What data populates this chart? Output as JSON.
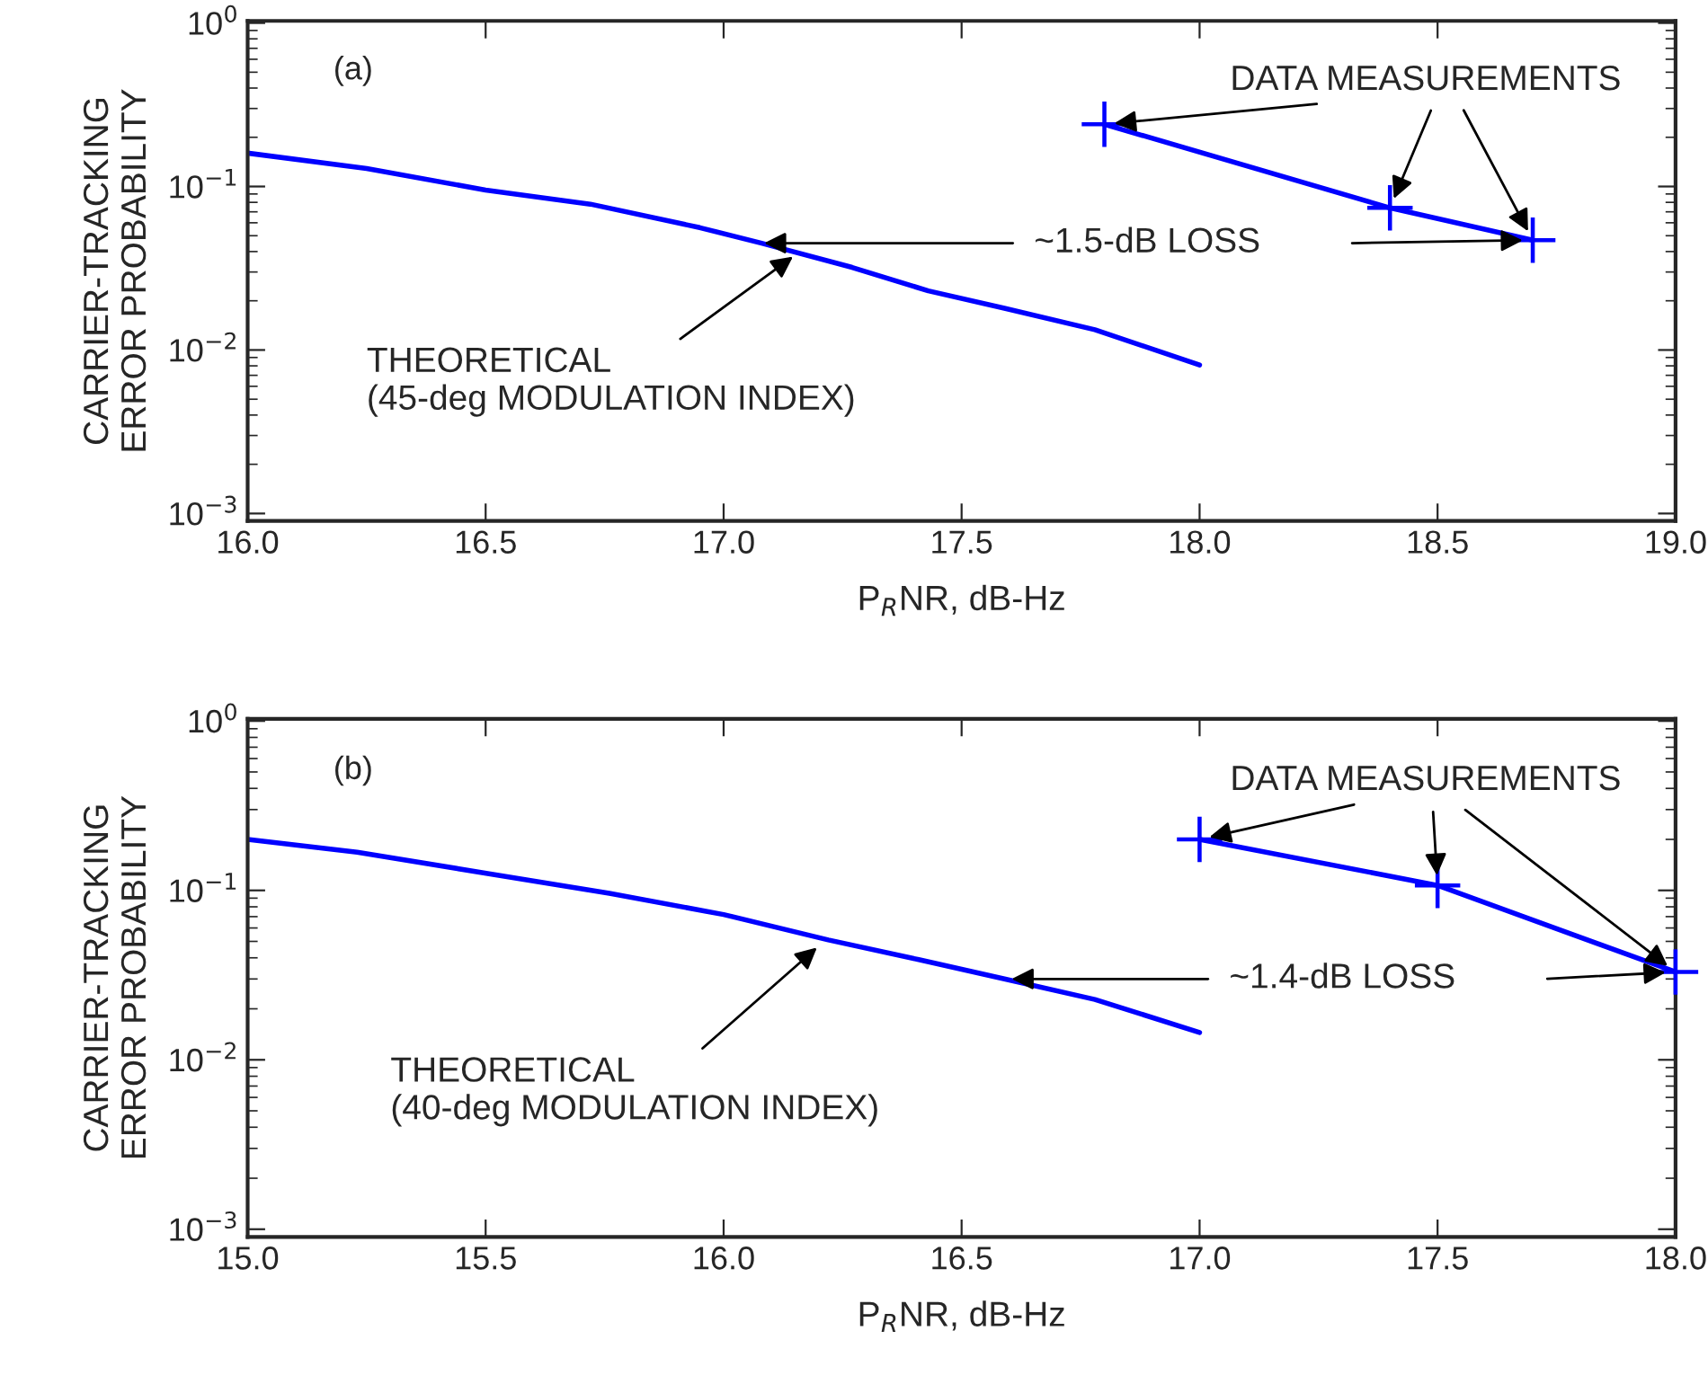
{
  "chart_data": [
    {
      "type": "line",
      "xlabel": "P$_{R}$NR, dB-Hz",
      "ylabel": "CARRIER-TRACKING\nERROR PROBABILITY",
      "log": "y",
      "grid": false,
      "legend": false,
      "xlim": [
        16,
        19
      ],
      "xticks": [
        {
          "value": 16,
          "label": "16.0"
        },
        {
          "value": 16.5,
          "label": "16.5"
        },
        {
          "value": 17,
          "label": "17.0"
        },
        {
          "value": 17.5,
          "label": "17.5"
        },
        {
          "value": 18,
          "label": "18.0"
        },
        {
          "value": 18.5,
          "label": "18.5"
        },
        {
          "value": 19,
          "label": "19.0"
        }
      ],
      "ylim": [
        0.0009,
        1.03
      ],
      "yticks": [
        {
          "value": 0.001,
          "label": "10$^{−3}$"
        },
        {
          "value": 0.01,
          "label": "10$^{−2}$"
        },
        {
          "value": 0.1,
          "label": "10$^{−1}$"
        },
        {
          "value": 1,
          "label": "10$^{0}$"
        }
      ],
      "series": [
        {
          "color": "#0000ff",
          "marker": "none",
          "x": [
            16.0,
            16.25,
            16.5,
            16.72,
            16.95,
            17.08,
            17.27,
            17.43,
            17.59,
            17.78,
            18.0
          ],
          "values": [
            0.16,
            0.129,
            0.095,
            0.078,
            0.056,
            0.045,
            0.032,
            0.023,
            0.018,
            0.0133,
            0.0081
          ]
        },
        {
          "color": "#0000ff",
          "marker": "cross",
          "x": [
            17.8,
            18.4,
            18.7
          ],
          "values": [
            0.24,
            0.074,
            0.047
          ]
        }
      ],
      "annotations": [
        "(a)",
        {
          "text": "DATA MEASUREMENTS",
          "x": 17.8,
          "y": 0.24
        },
        {
          "text": "~1.5-dB LOSS",
          "x": 17.08,
          "y": 0.045
        },
        {
          "text": "THEORETICAL\n(45-deg MODULATION INDEX)",
          "x": 17.15,
          "y": 0.038
        }
      ]
    },
    {
      "type": "line",
      "xlabel": "P$_{R}$NR, dB-Hz",
      "ylabel": "CARRIER-TRACKING\nERROR PROBABILITY",
      "log": "y",
      "grid": false,
      "legend": false,
      "xlim": [
        15,
        18
      ],
      "xticks": [
        {
          "value": 15,
          "label": "15.0"
        },
        {
          "value": 15.5,
          "label": "15.5"
        },
        {
          "value": 16,
          "label": "16.0"
        },
        {
          "value": 16.5,
          "label": "16.5"
        },
        {
          "value": 17,
          "label": "17.0"
        },
        {
          "value": 17.5,
          "label": "17.5"
        },
        {
          "value": 18,
          "label": "18.0"
        }
      ],
      "ylim": [
        0.0009,
        1.03
      ],
      "yticks": [
        {
          "value": 0.001,
          "label": "10$^{−3}$"
        },
        {
          "value": 0.01,
          "label": "10$^{−2}$"
        },
        {
          "value": 0.1,
          "label": "10$^{−1}$"
        },
        {
          "value": 1,
          "label": "10$^{0}$"
        }
      ],
      "series": [
        {
          "color": "#0000ff",
          "marker": "none",
          "x": [
            15.0,
            15.23,
            15.51,
            15.76,
            16.0,
            16.22,
            16.41,
            16.59,
            16.78,
            17.0
          ],
          "values": [
            0.2,
            0.168,
            0.125,
            0.096,
            0.072,
            0.051,
            0.039,
            0.03,
            0.0227,
            0.0145
          ]
        },
        {
          "color": "#0000ff",
          "marker": "cross",
          "x": [
            17.0,
            17.5,
            18.0
          ],
          "values": [
            0.2,
            0.107,
            0.033
          ]
        }
      ],
      "annotations": [
        "(b)",
        {
          "text": "DATA MEASUREMENTS",
          "x": 17.0,
          "y": 0.2
        },
        {
          "text": "~1.4-dB LOSS",
          "x": 16.6,
          "y": 0.03
        },
        {
          "text": "THEORETICAL\n(40-deg MODULATION INDEX)",
          "x": 16.2,
          "y": 0.047
        }
      ]
    }
  ]
}
